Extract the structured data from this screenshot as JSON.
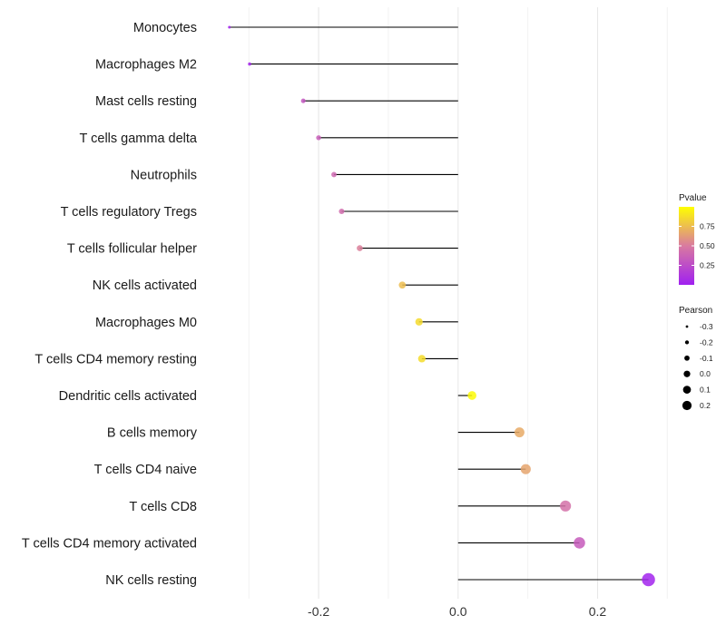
{
  "chart_data": {
    "type": "lollipop",
    "title": "",
    "xlabel": "",
    "ylabel": "",
    "xlim": [
      -0.355,
      0.31
    ],
    "x_ticks": [
      -0.2,
      0.0,
      0.2
    ],
    "x_tick_labels": [
      "-0.2",
      "0.0",
      "0.2"
    ],
    "minor_ticks": [
      -0.3,
      -0.1,
      0.1,
      0.3
    ],
    "grid": true,
    "categories": [
      "Monocytes",
      "Macrophages M2",
      "Mast cells resting",
      "T cells gamma delta",
      "Neutrophils",
      "T cells regulatory  Tregs ",
      "T cells follicular helper",
      "NK cells activated",
      "Macrophages M0",
      "T cells CD4 memory resting",
      "Dendritic cells activated",
      "B cells memory",
      "T cells CD4 naive",
      "T cells CD8",
      "T cells CD4 memory activated",
      "NK cells resting"
    ],
    "pearson": [
      -0.328,
      -0.299,
      -0.222,
      -0.2,
      -0.178,
      -0.167,
      -0.141,
      -0.08,
      -0.056,
      -0.052,
      0.02,
      0.088,
      0.097,
      0.154,
      0.174,
      0.273
    ],
    "pvalue": [
      0.02,
      0.03,
      0.3,
      0.35,
      0.4,
      0.42,
      0.52,
      0.75,
      0.86,
      0.87,
      0.98,
      0.68,
      0.66,
      0.45,
      0.33,
      0.02
    ],
    "legend": {
      "pvalue": {
        "title": "Pvalue",
        "ticks": [
          0.25,
          0.5,
          0.75
        ],
        "tick_labels": [
          "0.25",
          "0.50",
          "0.75"
        ],
        "range": [
          0.0,
          1.0
        ],
        "low_color": "#a020f0",
        "mid_color": "#d97aa0",
        "high_color": "#ffff00"
      },
      "pearson": {
        "title": "Pearson",
        "values": [
          -0.3,
          -0.2,
          -0.1,
          0.0,
          0.1,
          0.2
        ],
        "labels": [
          "-0.3",
          "-0.2",
          "-0.1",
          "0.0",
          "0.1",
          "0.2"
        ],
        "color": "#000000"
      }
    }
  }
}
